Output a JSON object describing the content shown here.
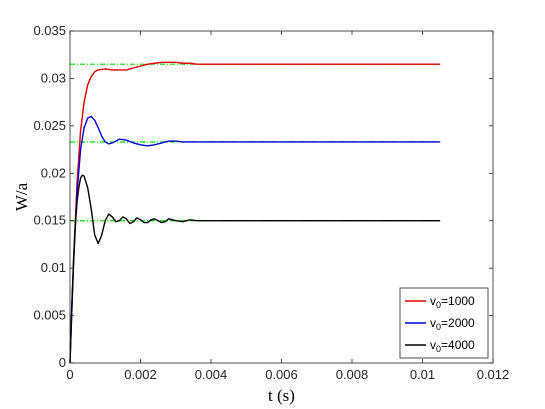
{
  "chart_data": {
    "type": "line",
    "xlabel": "t (s)",
    "ylabel": "W/a",
    "xlim": [
      0,
      0.012
    ],
    "ylim": [
      0,
      0.035
    ],
    "xticks": [
      0,
      0.002,
      0.004,
      0.006,
      0.008,
      0.01,
      0.012
    ],
    "xtick_labels": [
      "0",
      "0.002",
      "0.004",
      "0.006",
      "0.008",
      "0.01",
      "0.012"
    ],
    "yticks": [
      0,
      0.005,
      0.01,
      0.015,
      0.02,
      0.025,
      0.03,
      0.035
    ],
    "ytick_labels": [
      "0",
      "0.005",
      "0.01",
      "0.015",
      "0.02",
      "0.025",
      "0.03",
      "0.035"
    ],
    "grid": false,
    "legend_position": "bottom-right",
    "series": [
      {
        "name": "1000",
        "legend_prefix": "v",
        "legend_sub": "0",
        "legend_suffix": "=1000",
        "color": "#e00000",
        "x": [
          0,
          0.0001,
          0.0002,
          0.0003,
          0.0004,
          0.0005,
          0.0006,
          0.0007,
          0.0008,
          0.001,
          0.0012,
          0.0014,
          0.0016,
          0.0018,
          0.002,
          0.0022,
          0.0024,
          0.0026,
          0.0028,
          0.003,
          0.0032,
          0.0034,
          0.0036,
          0.004,
          0.005,
          0.006,
          0.007,
          0.008,
          0.009,
          0.0105
        ],
        "y": [
          0,
          0.011,
          0.019,
          0.0245,
          0.0275,
          0.0293,
          0.0302,
          0.0307,
          0.0309,
          0.031,
          0.0309,
          0.0309,
          0.0309,
          0.0311,
          0.0313,
          0.0315,
          0.0316,
          0.0317,
          0.0317,
          0.0317,
          0.0316,
          0.0316,
          0.0315,
          0.0315,
          0.0315,
          0.0315,
          0.0315,
          0.0315,
          0.0315,
          0.0315
        ]
      },
      {
        "name": "2000",
        "legend_prefix": "v",
        "legend_sub": "0",
        "legend_suffix": "=2000",
        "color": "#0000e0",
        "x": [
          0,
          0.0001,
          0.0002,
          0.0003,
          0.0004,
          0.0005,
          0.0006,
          0.0007,
          0.0008,
          0.0009,
          0.001,
          0.0011,
          0.0012,
          0.0014,
          0.0016,
          0.0018,
          0.002,
          0.0022,
          0.0024,
          0.0026,
          0.0028,
          0.003,
          0.0032,
          0.0034,
          0.0036,
          0.004,
          0.005,
          0.006,
          0.008,
          0.0105
        ],
        "y": [
          0,
          0.0105,
          0.018,
          0.0225,
          0.0248,
          0.0258,
          0.026,
          0.0256,
          0.0248,
          0.0239,
          0.0233,
          0.0231,
          0.0232,
          0.0236,
          0.0235,
          0.0232,
          0.023,
          0.0229,
          0.023,
          0.0232,
          0.0234,
          0.0234,
          0.0233,
          0.0233,
          0.0233,
          0.0233,
          0.0233,
          0.0233,
          0.0233,
          0.0233
        ]
      },
      {
        "name": "4000",
        "legend_prefix": "v",
        "legend_sub": "0",
        "legend_suffix": "=4000",
        "color": "#000000",
        "x": [
          0,
          5e-05,
          0.0001,
          0.00015,
          0.0002,
          0.00025,
          0.0003,
          0.00035,
          0.0004,
          0.0005,
          0.0006,
          0.0007,
          0.0008,
          0.0009,
          0.001,
          0.0011,
          0.0012,
          0.0013,
          0.0014,
          0.0015,
          0.0016,
          0.0017,
          0.0018,
          0.0019,
          0.002,
          0.0021,
          0.0022,
          0.0023,
          0.0024,
          0.0025,
          0.0026,
          0.0027,
          0.0028,
          0.0029,
          0.003,
          0.0032,
          0.0034,
          0.0036,
          0.004,
          0.005,
          0.006,
          0.008,
          0.0105
        ],
        "y": [
          0,
          0.006,
          0.0105,
          0.0145,
          0.017,
          0.0185,
          0.0195,
          0.0198,
          0.0197,
          0.0185,
          0.0163,
          0.0135,
          0.0126,
          0.0135,
          0.015,
          0.0157,
          0.0154,
          0.0149,
          0.015,
          0.0154,
          0.0152,
          0.0147,
          0.0149,
          0.0153,
          0.0151,
          0.0148,
          0.0148,
          0.0151,
          0.0152,
          0.015,
          0.0148,
          0.0149,
          0.0152,
          0.0151,
          0.015,
          0.0149,
          0.0151,
          0.015,
          0.015,
          0.015,
          0.015,
          0.015,
          0.015
        ]
      }
    ],
    "reference_lines": [
      {
        "y": 0.0315,
        "x": [
          0,
          0.0105
        ],
        "color": "#00e000",
        "style": "dash-dot"
      },
      {
        "y": 0.0233,
        "x": [
          0,
          0.0105
        ],
        "color": "#00e000",
        "style": "dash-dot"
      },
      {
        "y": 0.015,
        "x": [
          0,
          0.0105
        ],
        "color": "#00e000",
        "style": "dash-dot"
      }
    ]
  }
}
